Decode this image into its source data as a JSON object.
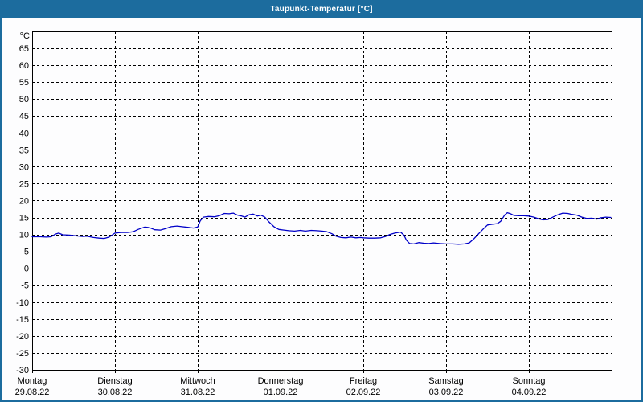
{
  "window": {
    "title": "Taupunkt-Temperatur [°C]"
  },
  "colors": {
    "titlebar_bg": "#1c6c9e",
    "titlebar_text": "#ffffff",
    "frame_border": "#1c6c9e",
    "plot_background": "#fdfdfe",
    "plot_border": "#000000",
    "grid": "#000000",
    "axis_text": "#000000",
    "series_line": "#0000c8"
  },
  "chart_data": {
    "type": "line",
    "title": "Taupunkt-Temperatur [°C]",
    "ylabel": "°C",
    "xlabel": "",
    "ylim": [
      -30,
      65
    ],
    "ytick_step": 5,
    "grid": true,
    "grid_style": "dashed",
    "legend": "none",
    "x_axis": {
      "unit": "day",
      "range": [
        0,
        7
      ],
      "days": [
        {
          "weekday": "Montag",
          "date": "29.08.22"
        },
        {
          "weekday": "Dienstag",
          "date": "30.08.22"
        },
        {
          "weekday": "Mittwoch",
          "date": "31.08.22"
        },
        {
          "weekday": "Donnerstag",
          "date": "01.09.22"
        },
        {
          "weekday": "Freitag",
          "date": "02.09.22"
        },
        {
          "weekday": "Samstag",
          "date": "03.09.22"
        },
        {
          "weekday": "Sonntag",
          "date": "04.09.22"
        }
      ]
    },
    "series": [
      {
        "name": "Taupunkt-Temperatur",
        "color": "#0000c8",
        "points": [
          [
            0.0,
            9.3
          ],
          [
            0.1,
            9.3
          ],
          [
            0.17,
            9.2
          ],
          [
            0.23,
            9.3
          ],
          [
            0.28,
            10.1
          ],
          [
            0.32,
            10.4
          ],
          [
            0.37,
            9.9
          ],
          [
            0.45,
            9.8
          ],
          [
            0.53,
            9.6
          ],
          [
            0.61,
            9.4
          ],
          [
            0.66,
            9.5
          ],
          [
            0.74,
            9.1
          ],
          [
            0.81,
            8.9
          ],
          [
            0.87,
            8.8
          ],
          [
            0.93,
            9.2
          ],
          [
            1.0,
            10.4
          ],
          [
            1.07,
            10.6
          ],
          [
            1.15,
            10.6
          ],
          [
            1.22,
            10.8
          ],
          [
            1.28,
            11.5
          ],
          [
            1.36,
            12.2
          ],
          [
            1.42,
            12.0
          ],
          [
            1.48,
            11.4
          ],
          [
            1.55,
            11.3
          ],
          [
            1.62,
            11.8
          ],
          [
            1.68,
            12.3
          ],
          [
            1.75,
            12.5
          ],
          [
            1.81,
            12.3
          ],
          [
            1.88,
            12.1
          ],
          [
            1.95,
            11.9
          ],
          [
            2.0,
            12.2
          ],
          [
            2.03,
            14.0
          ],
          [
            2.07,
            15.1
          ],
          [
            2.13,
            15.3
          ],
          [
            2.2,
            15.2
          ],
          [
            2.26,
            15.5
          ],
          [
            2.32,
            16.2
          ],
          [
            2.38,
            16.1
          ],
          [
            2.43,
            16.3
          ],
          [
            2.48,
            15.7
          ],
          [
            2.53,
            15.4
          ],
          [
            2.57,
            15.1
          ],
          [
            2.62,
            15.8
          ],
          [
            2.67,
            16.0
          ],
          [
            2.72,
            15.4
          ],
          [
            2.76,
            15.7
          ],
          [
            2.81,
            15.1
          ],
          [
            2.86,
            13.7
          ],
          [
            2.92,
            12.3
          ],
          [
            2.98,
            11.5
          ],
          [
            3.04,
            11.3
          ],
          [
            3.1,
            11.1
          ],
          [
            3.17,
            11.0
          ],
          [
            3.24,
            11.2
          ],
          [
            3.3,
            11.0
          ],
          [
            3.37,
            11.2
          ],
          [
            3.44,
            11.1
          ],
          [
            3.5,
            11.0
          ],
          [
            3.56,
            10.8
          ],
          [
            3.62,
            10.2
          ],
          [
            3.67,
            9.5
          ],
          [
            3.73,
            9.1
          ],
          [
            3.79,
            9.0
          ],
          [
            3.85,
            9.2
          ],
          [
            3.91,
            9.0
          ],
          [
            3.97,
            9.1
          ],
          [
            4.0,
            9.0
          ],
          [
            4.07,
            8.9
          ],
          [
            4.14,
            8.9
          ],
          [
            4.21,
            9.0
          ],
          [
            4.27,
            9.4
          ],
          [
            4.32,
            10.0
          ],
          [
            4.38,
            10.4
          ],
          [
            4.45,
            10.7
          ],
          [
            4.49,
            9.8
          ],
          [
            4.52,
            8.3
          ],
          [
            4.56,
            7.3
          ],
          [
            4.61,
            7.2
          ],
          [
            4.67,
            7.6
          ],
          [
            4.73,
            7.4
          ],
          [
            4.79,
            7.3
          ],
          [
            4.85,
            7.5
          ],
          [
            4.92,
            7.3
          ],
          [
            5.0,
            7.2
          ],
          [
            5.08,
            7.2
          ],
          [
            5.15,
            7.1
          ],
          [
            5.22,
            7.2
          ],
          [
            5.28,
            7.5
          ],
          [
            5.34,
            8.8
          ],
          [
            5.4,
            10.4
          ],
          [
            5.46,
            11.9
          ],
          [
            5.5,
            12.8
          ],
          [
            5.56,
            13.0
          ],
          [
            5.62,
            13.2
          ],
          [
            5.66,
            13.9
          ],
          [
            5.71,
            15.8
          ],
          [
            5.74,
            16.4
          ],
          [
            5.78,
            16.1
          ],
          [
            5.82,
            15.6
          ],
          [
            5.88,
            15.5
          ],
          [
            5.94,
            15.5
          ],
          [
            6.0,
            15.4
          ],
          [
            6.06,
            15.1
          ],
          [
            6.12,
            14.6
          ],
          [
            6.17,
            14.3
          ],
          [
            6.23,
            14.4
          ],
          [
            6.29,
            15.1
          ],
          [
            6.35,
            15.8
          ],
          [
            6.41,
            16.3
          ],
          [
            6.47,
            16.2
          ],
          [
            6.52,
            15.9
          ],
          [
            6.58,
            15.7
          ],
          [
            6.64,
            15.1
          ],
          [
            6.7,
            14.7
          ],
          [
            6.76,
            14.8
          ],
          [
            6.82,
            14.5
          ],
          [
            6.87,
            14.9
          ],
          [
            6.93,
            15.1
          ],
          [
            6.99,
            15.0
          ]
        ]
      }
    ]
  }
}
